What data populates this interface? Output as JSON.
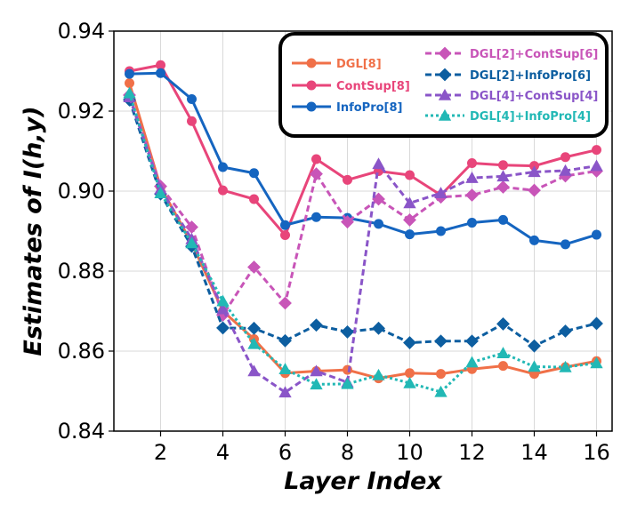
{
  "chart_data": {
    "type": "line",
    "xlabel": "Layer Index",
    "ylabel": "Estimates of I(h,y)",
    "xlim": [
      0.5,
      16.5
    ],
    "ylim": [
      0.84,
      0.94
    ],
    "xticks": [
      2,
      4,
      6,
      8,
      10,
      12,
      14,
      16
    ],
    "xtick_labels": [
      "2",
      "4",
      "6",
      "8",
      "10",
      "12",
      "14",
      "16"
    ],
    "yticks": [
      0.84,
      0.86,
      0.88,
      0.9,
      0.92,
      0.94
    ],
    "ytick_labels": [
      "0.84",
      "0.86",
      "0.88",
      "0.90",
      "0.92",
      "0.94"
    ],
    "grid": true,
    "legend_position": "top-right",
    "x": [
      1,
      2,
      3,
      4,
      5,
      6,
      7,
      8,
      9,
      10,
      11,
      12,
      13,
      14,
      15,
      16
    ],
    "series": [
      {
        "name": "DGL[8]",
        "color": "#f07048",
        "dash": "solid",
        "marker": "circle",
        "values": [
          0.927,
          0.901,
          0.887,
          0.87,
          0.863,
          0.8545,
          0.855,
          0.8553,
          0.8532,
          0.8545,
          0.8543,
          0.8555,
          0.8563,
          0.8543,
          0.856,
          0.8575
        ]
      },
      {
        "name": "ContSup[8]",
        "color": "#e8457a",
        "dash": "solid",
        "marker": "circle",
        "values": [
          0.93,
          0.9315,
          0.9175,
          0.9002,
          0.898,
          0.889,
          0.908,
          0.9028,
          0.905,
          0.904,
          0.899,
          0.907,
          0.9065,
          0.9063,
          0.9085,
          0.9103
        ]
      },
      {
        "name": "InfoPro[8]",
        "color": "#1565c0",
        "dash": "solid",
        "marker": "circle",
        "values": [
          0.9293,
          0.9295,
          0.923,
          0.906,
          0.9045,
          0.8915,
          0.8935,
          0.8933,
          0.8918,
          0.8892,
          0.89,
          0.8921,
          0.8928,
          0.8877,
          0.8867,
          0.8891
        ]
      },
      {
        "name": "DGL[2]+ContSup[6]",
        "color": "#c855b8",
        "dash": "dashed",
        "marker": "diamond",
        "values": [
          0.924,
          0.9012,
          0.891,
          0.869,
          0.881,
          0.872,
          0.9043,
          0.8923,
          0.898,
          0.8928,
          0.8985,
          0.899,
          0.901,
          0.9002,
          0.9038,
          0.905
        ]
      },
      {
        "name": "DGL[2]+InfoPro[6]",
        "color": "#0d5ea0",
        "dash": "dashed",
        "marker": "diamond",
        "values": [
          0.9228,
          0.8993,
          0.8862,
          0.8658,
          0.8657,
          0.8626,
          0.8665,
          0.8648,
          0.8657,
          0.8621,
          0.8625,
          0.8625,
          0.8668,
          0.8613,
          0.865,
          0.8669
        ]
      },
      {
        "name": "DGL[4]+ContSup[4]",
        "color": "#8a55c8",
        "dash": "dashed",
        "marker": "triangle",
        "values": [
          0.9235,
          0.9005,
          0.888,
          0.8705,
          0.855,
          0.8497,
          0.855,
          0.8522,
          0.9068,
          0.897,
          0.8995,
          0.9033,
          0.9037,
          0.9048,
          0.9051,
          0.9063
        ]
      },
      {
        "name": "DGL[4]+InfoPro[4]",
        "color": "#22b8b5",
        "dash": "dotted",
        "marker": "triangle",
        "values": [
          0.9245,
          0.8995,
          0.887,
          0.8725,
          0.8618,
          0.8555,
          0.8517,
          0.8518,
          0.854,
          0.852,
          0.8498,
          0.8572,
          0.8595,
          0.8561,
          0.856,
          0.857
        ]
      }
    ]
  }
}
